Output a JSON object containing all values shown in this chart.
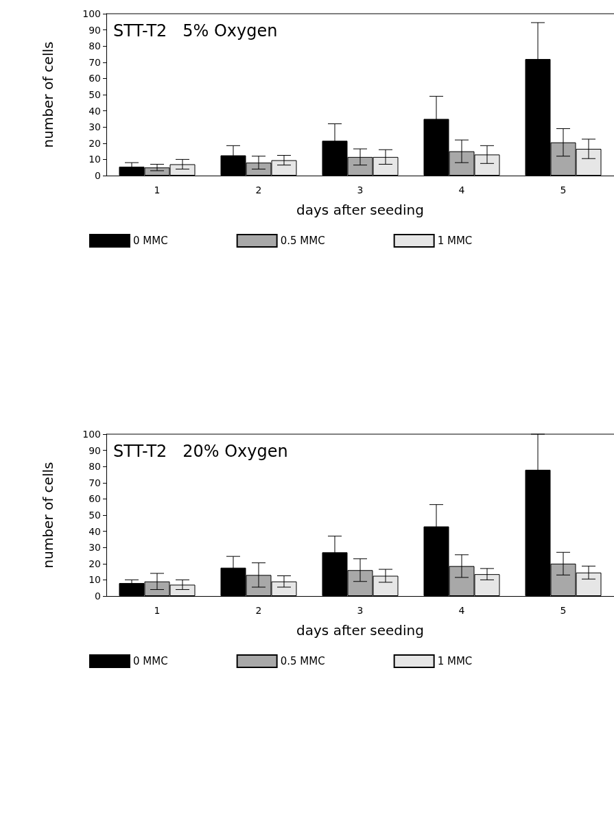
{
  "chart_data": [
    {
      "type": "bar",
      "title": "STT-T2   5% Oxygen",
      "xlabel": "days after seeding",
      "ylabel": "number of cells",
      "categories": [
        "1",
        "2",
        "3",
        "4",
        "5"
      ],
      "ylim": [
        0,
        100
      ],
      "yticks": [
        0,
        10,
        20,
        30,
        40,
        50,
        60,
        70,
        80,
        90,
        100
      ],
      "grid": false,
      "legend": "bottom",
      "series": [
        {
          "name": "0 MMC",
          "color": "#000000",
          "values": [
            5.5,
            12.5,
            21.5,
            35,
            72
          ],
          "errors": [
            2.5,
            6,
            10.5,
            14,
            22.5
          ]
        },
        {
          "name": "0.5 MMC",
          "color": "#a8a8a8",
          "values": [
            5,
            8,
            11.5,
            15,
            20.5
          ],
          "errors": [
            2,
            4,
            5,
            7,
            8.5
          ]
        },
        {
          "name": "1 MMC",
          "color": "#e6e6e6",
          "values": [
            7,
            9.5,
            11.5,
            13,
            16.5
          ],
          "errors": [
            3,
            3,
            4.5,
            5.5,
            6
          ]
        }
      ]
    },
    {
      "type": "bar",
      "title": "STT-T2   20% Oxygen",
      "xlabel": "days after seeding",
      "ylabel": "number of cells",
      "categories": [
        "1",
        "2",
        "3",
        "4",
        "5"
      ],
      "ylim": [
        0,
        100
      ],
      "yticks": [
        0,
        10,
        20,
        30,
        40,
        50,
        60,
        70,
        80,
        90,
        100
      ],
      "grid": false,
      "legend": "bottom",
      "series": [
        {
          "name": "0 MMC",
          "color": "#000000",
          "values": [
            8,
            17.5,
            27,
            43,
            78
          ],
          "errors": [
            2,
            7,
            10,
            13.5,
            22
          ]
        },
        {
          "name": "0.5 MMC",
          "color": "#a8a8a8",
          "values": [
            9,
            13,
            16,
            18.5,
            20
          ],
          "errors": [
            5,
            7.5,
            7,
            7,
            7
          ]
        },
        {
          "name": "1 MMC",
          "color": "#e6e6e6",
          "values": [
            7,
            9,
            12.5,
            13.5,
            14.5
          ],
          "errors": [
            3,
            3.5,
            4,
            3.5,
            4
          ]
        }
      ]
    }
  ]
}
